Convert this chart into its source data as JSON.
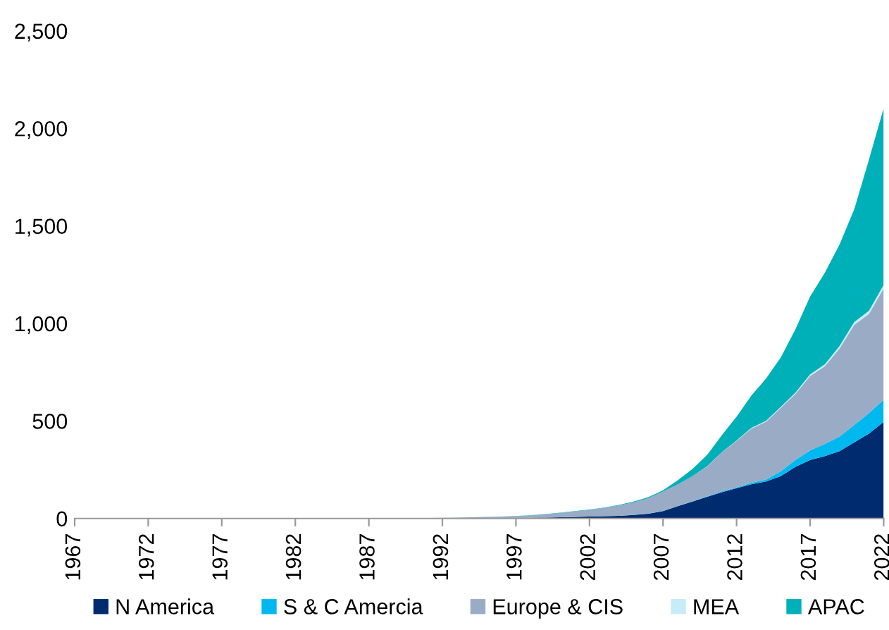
{
  "chart_data": {
    "type": "area",
    "stacked": true,
    "x": [
      1967,
      1968,
      1969,
      1970,
      1971,
      1972,
      1973,
      1974,
      1975,
      1976,
      1977,
      1978,
      1979,
      1980,
      1981,
      1982,
      1983,
      1984,
      1985,
      1986,
      1987,
      1988,
      1989,
      1990,
      1991,
      1992,
      1993,
      1994,
      1995,
      1996,
      1997,
      1998,
      1999,
      2000,
      2001,
      2002,
      2003,
      2004,
      2005,
      2006,
      2007,
      2008,
      2009,
      2010,
      2011,
      2012,
      2013,
      2014,
      2015,
      2016,
      2017,
      2018,
      2019,
      2020,
      2021,
      2022
    ],
    "series": [
      {
        "name": "N America",
        "color": "#002b6e",
        "values": [
          0,
          0,
          0,
          0,
          0,
          0,
          0,
          0,
          0,
          0,
          0,
          0,
          0,
          0,
          0,
          0,
          0,
          0,
          0,
          1,
          1,
          1,
          1,
          1,
          1,
          2,
          2,
          2,
          2,
          3,
          3,
          4,
          5,
          6,
          8,
          10,
          12,
          14,
          18,
          24,
          38,
          63,
          87,
          111,
          135,
          155,
          175,
          190,
          217,
          265,
          300,
          320,
          345,
          390,
          435,
          495
        ]
      },
      {
        "name": "S & C Amercia",
        "color": "#00b8f0",
        "values": [
          0,
          0,
          0,
          0,
          0,
          0,
          0,
          0,
          0,
          0,
          0,
          0,
          0,
          0,
          0,
          0,
          0,
          0,
          0,
          0,
          0,
          0,
          0,
          0,
          0,
          0,
          0,
          0,
          0,
          0,
          0,
          0,
          0,
          0,
          0,
          0,
          0,
          0,
          1,
          1,
          1,
          1,
          2,
          3,
          4,
          4,
          8,
          10,
          25,
          35,
          50,
          62,
          75,
          90,
          105,
          115
        ]
      },
      {
        "name": "Europe & CIS",
        "color": "#9aabc6",
        "values": [
          0,
          0,
          0,
          0,
          0,
          0,
          0,
          0,
          0,
          0,
          0,
          0,
          0,
          0,
          0,
          0,
          0,
          0,
          0,
          0,
          1,
          1,
          1,
          2,
          2,
          2,
          3,
          4,
          5,
          6,
          9,
          12,
          16,
          22,
          28,
          33,
          42,
          53,
          63,
          79,
          99,
          110,
          128,
          153,
          200,
          239,
          278,
          296,
          325,
          339,
          381,
          398,
          452,
          513,
          509,
          570
        ]
      },
      {
        "name": "MEA",
        "color": "#c6ecf7",
        "values": [
          0,
          0,
          0,
          0,
          0,
          0,
          0,
          0,
          0,
          0,
          0,
          0,
          0,
          0,
          0,
          0,
          0,
          0,
          0,
          0,
          0,
          0,
          0,
          0,
          0,
          0,
          0,
          0,
          0,
          0,
          0,
          0,
          0,
          0,
          0,
          0,
          0,
          0,
          0,
          0,
          0,
          0,
          0,
          1,
          1,
          2,
          3,
          4,
          5,
          6,
          8,
          10,
          12,
          14,
          16,
          18
        ]
      },
      {
        "name": "APAC",
        "color": "#00b0b9",
        "values": [
          0,
          0,
          0,
          0,
          0,
          0,
          0,
          0,
          0,
          0,
          0,
          0,
          0,
          0,
          0,
          0,
          0,
          0,
          0,
          0,
          0,
          0,
          0,
          0,
          0,
          0,
          0,
          0,
          1,
          1,
          1,
          1,
          2,
          2,
          2,
          3,
          2,
          3,
          5,
          5,
          7,
          22,
          37,
          58,
          87,
          122,
          166,
          217,
          253,
          325,
          399,
          470,
          521,
          578,
          775,
          906
        ]
      }
    ],
    "xlim": [
      1967,
      2022
    ],
    "xticks": [
      1967,
      1972,
      1977,
      1982,
      1987,
      1992,
      1997,
      2002,
      2007,
      2012,
      2017,
      2022
    ],
    "ylim": [
      0,
      2500
    ],
    "yticks": [
      {
        "value": 0,
        "label": "0"
      },
      {
        "value": 500,
        "label": "500"
      },
      {
        "value": 1000,
        "label": "1,000"
      },
      {
        "value": 1500,
        "label": "1,500"
      },
      {
        "value": 2000,
        "label": "2,000"
      },
      {
        "value": 2500,
        "label": "2,500"
      }
    ],
    "grid": false,
    "legend": "bottom"
  }
}
